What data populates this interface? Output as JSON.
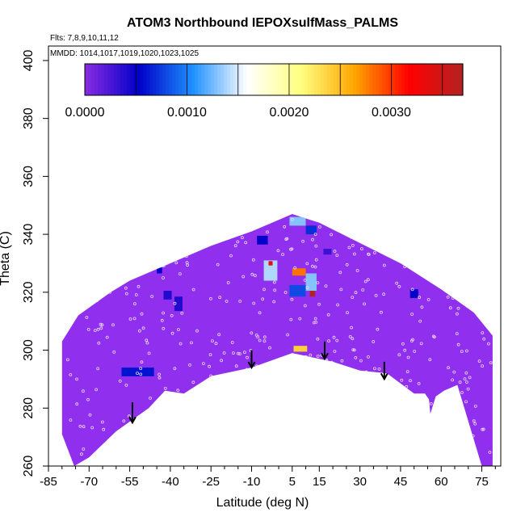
{
  "chart_data": {
    "type": "heatmap",
    "title": "ATOM3 Northbound IEPOXsulfMass_PALMS",
    "subtitle_flights": "Flts: 7,8,9,10,11,12",
    "subtitle_dates": "MMDD: 1014,1017,1019,1020,1023,1025",
    "xlabel": "Latitude (deg N)",
    "ylabel": "Theta (C)",
    "xlim": [
      -85,
      82
    ],
    "ylim": [
      260,
      405
    ],
    "x_ticks": [
      -85,
      -70,
      -55,
      -40,
      -25,
      -10,
      5,
      15,
      30,
      45,
      60,
      75
    ],
    "y_ticks": [
      260,
      280,
      300,
      320,
      340,
      360,
      380,
      400
    ],
    "colorbar": {
      "range": [
        0,
        0.0037
      ],
      "tick_values": [
        0,
        0.001,
        0.002,
        0.003
      ],
      "tick_labels": [
        "0.0000",
        "0.0010",
        "0.0020",
        "0.0030"
      ],
      "colors": [
        "#8a2be2",
        "#0000c8",
        "#1e90ff",
        "#ffffff",
        "#ffff80",
        "#ffa500",
        "#ff0000",
        "#b22222"
      ]
    },
    "background_value": 2e-05,
    "fill_color": "#9030ee",
    "coverage_outline": [
      [
        -75.5,
        260
      ],
      [
        -80,
        271
      ],
      [
        -80,
        303
      ],
      [
        -74,
        312
      ],
      [
        -62,
        320
      ],
      [
        -55,
        324
      ],
      [
        -40,
        330
      ],
      [
        -25,
        336
      ],
      [
        -10,
        341
      ],
      [
        0,
        345
      ],
      [
        5,
        347
      ],
      [
        15,
        344
      ],
      [
        30,
        337
      ],
      [
        45,
        330
      ],
      [
        60,
        321
      ],
      [
        72,
        313
      ],
      [
        79,
        305
      ],
      [
        79,
        260
      ],
      [
        75,
        260
      ],
      [
        66,
        288
      ],
      [
        61,
        286
      ],
      [
        58,
        284
      ],
      [
        56,
        278
      ],
      [
        55.5,
        283
      ],
      [
        54,
        285
      ],
      [
        50,
        285
      ],
      [
        40,
        292
      ],
      [
        30,
        293
      ],
      [
        20,
        296
      ],
      [
        5,
        299
      ],
      [
        -10,
        294
      ],
      [
        -25,
        291
      ],
      [
        -35,
        285
      ],
      [
        -42,
        286
      ],
      [
        -48,
        280
      ],
      [
        -60,
        272
      ],
      [
        -70,
        263
      ]
    ],
    "hotspots": [
      {
        "lat": 7,
        "theta": 344.5,
        "value": 0.0013,
        "w": 6,
        "h": 3
      },
      {
        "lat": 12,
        "theta": 341.5,
        "value": 0.0007,
        "w": 4,
        "h": 3
      },
      {
        "lat": -18,
        "theta": 342,
        "value": 0.0006,
        "w": 4,
        "h": 3
      },
      {
        "lat": -6,
        "theta": 338,
        "value": 0.0005,
        "w": 4,
        "h": 3
      },
      {
        "lat": -3,
        "theta": 330,
        "value": 0.0034,
        "w": 1.5,
        "h": 1.5
      },
      {
        "lat": -3,
        "theta": 327.5,
        "value": 0.0014,
        "w": 5,
        "h": 7
      },
      {
        "lat": 7.5,
        "theta": 327,
        "value": 0.0028,
        "w": 5,
        "h": 2.5
      },
      {
        "lat": 12,
        "theta": 323.5,
        "value": 0.0013,
        "w": 4,
        "h": 6
      },
      {
        "lat": 12.5,
        "theta": 319.5,
        "value": 0.0037,
        "w": 2,
        "h": 2
      },
      {
        "lat": 7,
        "theta": 320.5,
        "value": 0.0008,
        "w": 6,
        "h": 4
      },
      {
        "lat": 8,
        "theta": 300.5,
        "value": 0.0024,
        "w": 5,
        "h": 2
      },
      {
        "lat": -52,
        "theta": 292.5,
        "value": 0.0006,
        "w": 12,
        "h": 3
      },
      {
        "lat": -37,
        "theta": 316,
        "value": 0.0004,
        "w": 3,
        "h": 5
      },
      {
        "lat": -41,
        "theta": 319,
        "value": 0.0004,
        "w": 3,
        "h": 3
      },
      {
        "lat": -44,
        "theta": 327.5,
        "value": 0.0005,
        "w": 2,
        "h": 2
      },
      {
        "lat": 50,
        "theta": 319.5,
        "value": 0.0005,
        "w": 3,
        "h": 3
      },
      {
        "lat": 18,
        "theta": 334,
        "value": 0.0003,
        "w": 3,
        "h": 2
      }
    ],
    "arrows": [
      {
        "lat": -54,
        "theta_top": 282,
        "theta_tip": 275
      },
      {
        "lat": -10,
        "theta_top": 300,
        "theta_tip": 294
      },
      {
        "lat": 17,
        "theta_top": 303,
        "theta_tip": 297
      },
      {
        "lat": 39,
        "theta_top": 296,
        "theta_tip": 290
      }
    ]
  }
}
